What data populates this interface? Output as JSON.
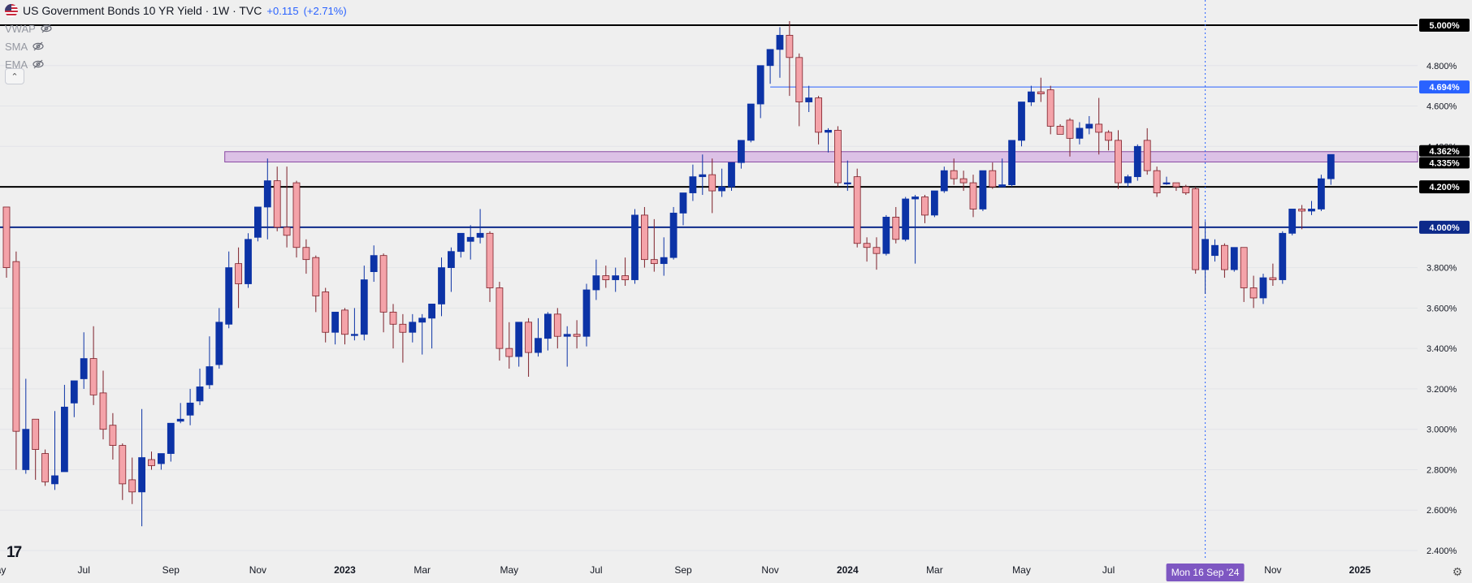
{
  "header": {
    "symbol": "US Government Bonds 10 YR Yield · 1W · TVC",
    "change_abs": "+0.115",
    "change_pct": "(+2.71%)"
  },
  "indicators": [
    {
      "label": "VWAP",
      "icon": "eye-off-icon"
    },
    {
      "label": "SMA",
      "icon": "eye-off-icon"
    },
    {
      "label": "EMA",
      "icon": "eye-off-icon"
    }
  ],
  "collapse_glyph": "⌃",
  "logo_text": "17",
  "colors": {
    "bull": "#0c33a6",
    "bear": "#f4a3a9",
    "bear_outline": "#7d1f28",
    "level_black": "#000000",
    "level_blue": "#0d2a8a",
    "highlight_blue": "#2962ff",
    "zone_fill": "#d6b1e3",
    "zone_stroke": "#8a4aa3"
  },
  "chart_data": {
    "type": "candlestick",
    "ylim": [
      2.35,
      5.1
    ],
    "y_ticks": [
      "2.400%",
      "2.600%",
      "2.800%",
      "3.000%",
      "3.200%",
      "3.400%",
      "3.600%",
      "3.800%",
      "4.000%",
      "4.200%",
      "4.400%",
      "4.600%",
      "4.800%",
      "5.000%"
    ],
    "x_labels": [
      {
        "label": "May",
        "week": -1
      },
      {
        "label": "Jul",
        "week": 8
      },
      {
        "label": "Sep",
        "week": 17
      },
      {
        "label": "Nov",
        "week": 26
      },
      {
        "label": "2023",
        "week": 35
      },
      {
        "label": "Mar",
        "week": 43
      },
      {
        "label": "May",
        "week": 52
      },
      {
        "label": "Jul",
        "week": 61
      },
      {
        "label": "Sep",
        "week": 70
      },
      {
        "label": "Nov",
        "week": 79
      },
      {
        "label": "2024",
        "week": 87
      },
      {
        "label": "Mar",
        "week": 96
      },
      {
        "label": "May",
        "week": 105
      },
      {
        "label": "Jul",
        "week": 114
      },
      {
        "label": "Nov",
        "week": 131
      },
      {
        "label": "2025",
        "week": 140
      }
    ],
    "crosshair": {
      "week": 124,
      "label": "Mon 16 Sep '24"
    },
    "levels": [
      {
        "value": 5.0,
        "label": "5.000%",
        "style": "black"
      },
      {
        "value": 4.2,
        "label": "4.200%",
        "style": "black"
      },
      {
        "value": 4.0,
        "label": "4.000%",
        "style": "blue"
      },
      {
        "value": 4.694,
        "label": "4.694%",
        "style": "thin",
        "from_week": 79
      }
    ],
    "zone": {
      "low": 4.335,
      "high": 4.362,
      "from_week": 23,
      "labels": [
        "4.362%",
        "4.335%"
      ]
    },
    "candles": [
      [
        4.1,
        3.8,
        3.8,
        3.75
      ],
      [
        3.83,
        3.88,
        2.99,
        2.8
      ],
      [
        2.8,
        3.25,
        3.0,
        2.78
      ],
      [
        3.05,
        3.04,
        2.9,
        2.75
      ],
      [
        2.88,
        2.9,
        2.74,
        2.72
      ],
      [
        2.73,
        3.09,
        2.77,
        2.7
      ],
      [
        2.79,
        3.22,
        3.11,
        3.05
      ],
      [
        3.13,
        3.24,
        3.24,
        3.06
      ],
      [
        3.25,
        3.48,
        3.35,
        3.2
      ],
      [
        3.35,
        3.51,
        3.17,
        3.12
      ],
      [
        3.18,
        3.29,
        3.0,
        2.95
      ],
      [
        3.02,
        3.08,
        2.92,
        2.85
      ],
      [
        2.92,
        2.93,
        2.73,
        2.65
      ],
      [
        2.75,
        2.86,
        2.69,
        2.63
      ],
      [
        2.69,
        3.1,
        2.86,
        2.52
      ],
      [
        2.85,
        2.89,
        2.82,
        2.8
      ],
      [
        2.83,
        2.86,
        2.88,
        2.8
      ],
      [
        2.88,
        3.0,
        3.03,
        2.84
      ],
      [
        3.04,
        3.13,
        3.05,
        3.03
      ],
      [
        3.07,
        3.2,
        3.13,
        3.02
      ],
      [
        3.14,
        3.3,
        3.21,
        3.12
      ],
      [
        3.22,
        3.46,
        3.31,
        3.2
      ],
      [
        3.32,
        3.6,
        3.53,
        3.3
      ],
      [
        3.52,
        3.88,
        3.8,
        3.5
      ],
      [
        3.82,
        3.9,
        3.72,
        3.6
      ],
      [
        3.72,
        3.97,
        3.94,
        3.7
      ],
      [
        3.95,
        4.1,
        4.1,
        3.93
      ],
      [
        4.1,
        4.34,
        4.23,
        3.94
      ],
      [
        4.23,
        4.3,
        4.0,
        3.98
      ],
      [
        4.0,
        4.3,
        3.96,
        3.9
      ],
      [
        4.22,
        4.23,
        3.9,
        3.85
      ],
      [
        3.9,
        3.94,
        3.84,
        3.77
      ],
      [
        3.85,
        3.86,
        3.66,
        3.58
      ],
      [
        3.68,
        3.7,
        3.48,
        3.43
      ],
      [
        3.48,
        3.55,
        3.58,
        3.42
      ],
      [
        3.59,
        3.6,
        3.47,
        3.42
      ],
      [
        3.47,
        3.6,
        3.47,
        3.44
      ],
      [
        3.47,
        3.81,
        3.74,
        3.44
      ],
      [
        3.78,
        3.91,
        3.86,
        3.73
      ],
      [
        3.86,
        3.87,
        3.58,
        3.48
      ],
      [
        3.58,
        3.62,
        3.52,
        3.4
      ],
      [
        3.52,
        3.57,
        3.48,
        3.33
      ],
      [
        3.48,
        3.57,
        3.53,
        3.43
      ],
      [
        3.53,
        3.57,
        3.55,
        3.37
      ],
      [
        3.55,
        3.62,
        3.62,
        3.4
      ],
      [
        3.62,
        3.85,
        3.8,
        3.56
      ],
      [
        3.8,
        3.9,
        3.88,
        3.68
      ],
      [
        3.88,
        3.97,
        3.97,
        3.85
      ],
      [
        3.93,
        4.01,
        3.95,
        3.84
      ],
      [
        3.95,
        4.09,
        3.97,
        3.92
      ],
      [
        3.97,
        3.98,
        3.7,
        3.63
      ],
      [
        3.7,
        3.73,
        3.4,
        3.34
      ],
      [
        3.4,
        3.53,
        3.36,
        3.3
      ],
      [
        3.36,
        3.51,
        3.53,
        3.31
      ],
      [
        3.53,
        3.55,
        3.38,
        3.26
      ],
      [
        3.38,
        3.55,
        3.45,
        3.36
      ],
      [
        3.45,
        3.58,
        3.57,
        3.39
      ],
      [
        3.57,
        3.6,
        3.46,
        3.4
      ],
      [
        3.46,
        3.51,
        3.47,
        3.31
      ],
      [
        3.47,
        3.54,
        3.46,
        3.4
      ],
      [
        3.46,
        3.72,
        3.69,
        3.41
      ],
      [
        3.69,
        3.84,
        3.76,
        3.64
      ],
      [
        3.76,
        3.81,
        3.74,
        3.7
      ],
      [
        3.74,
        3.8,
        3.76,
        3.68
      ],
      [
        3.76,
        3.85,
        3.74,
        3.71
      ],
      [
        3.74,
        4.09,
        4.06,
        3.72
      ],
      [
        4.06,
        4.1,
        3.84,
        3.8
      ],
      [
        3.84,
        4.04,
        3.82,
        3.78
      ],
      [
        3.82,
        3.95,
        3.85,
        3.76
      ],
      [
        3.85,
        4.1,
        4.07,
        3.84
      ],
      [
        4.07,
        4.17,
        4.17,
        4.01
      ],
      [
        4.17,
        4.31,
        4.25,
        4.13
      ],
      [
        4.25,
        4.36,
        4.26,
        4.16
      ],
      [
        4.26,
        4.34,
        4.18,
        4.07
      ],
      [
        4.18,
        4.29,
        4.2,
        4.15
      ],
      [
        4.2,
        4.32,
        4.32,
        4.18
      ],
      [
        4.32,
        4.42,
        4.43,
        4.29
      ],
      [
        4.43,
        4.61,
        4.61,
        4.42
      ],
      [
        4.61,
        4.8,
        4.8,
        4.54
      ],
      [
        4.8,
        4.88,
        4.88,
        4.71
      ],
      [
        4.88,
        4.99,
        4.95,
        4.74
      ],
      [
        4.95,
        5.02,
        4.84,
        4.65
      ],
      [
        4.84,
        4.86,
        4.62,
        4.5
      ],
      [
        4.62,
        4.7,
        4.64,
        4.57
      ],
      [
        4.64,
        4.65,
        4.47,
        4.41
      ],
      [
        4.47,
        4.49,
        4.48,
        4.37
      ],
      [
        4.48,
        4.5,
        4.22,
        4.2
      ],
      [
        4.22,
        4.33,
        4.22,
        4.18
      ],
      [
        4.25,
        4.29,
        3.92,
        3.9
      ],
      [
        3.92,
        3.95,
        3.9,
        3.83
      ],
      [
        3.9,
        3.95,
        3.87,
        3.79
      ],
      [
        3.87,
        4.06,
        4.05,
        3.86
      ],
      [
        4.05,
        4.1,
        3.94,
        3.92
      ],
      [
        3.94,
        4.15,
        4.14,
        3.93
      ],
      [
        4.14,
        4.16,
        4.15,
        3.82
      ],
      [
        4.15,
        4.16,
        4.06,
        4.02
      ],
      [
        4.06,
        4.17,
        4.18,
        4.05
      ],
      [
        4.18,
        4.3,
        4.28,
        4.17
      ],
      [
        4.28,
        4.34,
        4.24,
        4.21
      ],
      [
        4.24,
        4.28,
        4.22,
        4.18
      ],
      [
        4.22,
        4.26,
        4.09,
        4.05
      ],
      [
        4.09,
        4.28,
        4.28,
        4.08
      ],
      [
        4.28,
        4.32,
        4.2,
        4.19
      ],
      [
        4.2,
        4.34,
        4.21,
        4.2
      ],
      [
        4.21,
        4.43,
        4.43,
        4.2
      ],
      [
        4.43,
        4.56,
        4.62,
        4.4
      ],
      [
        4.62,
        4.7,
        4.67,
        4.6
      ],
      [
        4.67,
        4.74,
        4.66,
        4.62
      ],
      [
        4.68,
        4.7,
        4.5,
        4.46
      ],
      [
        4.5,
        4.51,
        4.46,
        4.47
      ],
      [
        4.53,
        4.54,
        4.44,
        4.35
      ],
      [
        4.44,
        4.52,
        4.49,
        4.41
      ],
      [
        4.49,
        4.55,
        4.51,
        4.46
      ],
      [
        4.51,
        4.64,
        4.47,
        4.36
      ],
      [
        4.47,
        4.48,
        4.43,
        4.38
      ],
      [
        4.43,
        4.48,
        4.22,
        4.19
      ],
      [
        4.22,
        4.26,
        4.25,
        4.2
      ],
      [
        4.25,
        4.41,
        4.4,
        4.23
      ],
      [
        4.43,
        4.49,
        4.28,
        4.26
      ],
      [
        4.28,
        4.3,
        4.17,
        4.15
      ],
      [
        4.22,
        4.25,
        4.22,
        4.21
      ],
      [
        4.22,
        4.22,
        4.2,
        4.18
      ],
      [
        4.2,
        4.21,
        4.17,
        4.16
      ],
      [
        4.19,
        4.2,
        3.79,
        3.77
      ],
      [
        3.79,
        4.03,
        3.94,
        3.67
      ],
      [
        3.86,
        3.94,
        3.91,
        3.83
      ],
      [
        3.91,
        3.92,
        3.79,
        3.75
      ],
      [
        3.79,
        3.84,
        3.9,
        3.78
      ],
      [
        3.9,
        3.9,
        3.7,
        3.63
      ],
      [
        3.7,
        3.76,
        3.65,
        3.6
      ],
      [
        3.65,
        3.77,
        3.75,
        3.62
      ],
      [
        3.75,
        3.82,
        3.74,
        3.71
      ],
      [
        3.74,
        3.98,
        3.97,
        3.72
      ],
      [
        3.97,
        4.09,
        4.09,
        3.96
      ],
      [
        4.09,
        4.11,
        4.08,
        3.99
      ],
      [
        4.08,
        4.13,
        4.09,
        4.06
      ],
      [
        4.09,
        4.26,
        4.24,
        4.08
      ],
      [
        4.24,
        4.36,
        4.36,
        4.21
      ]
    ]
  }
}
